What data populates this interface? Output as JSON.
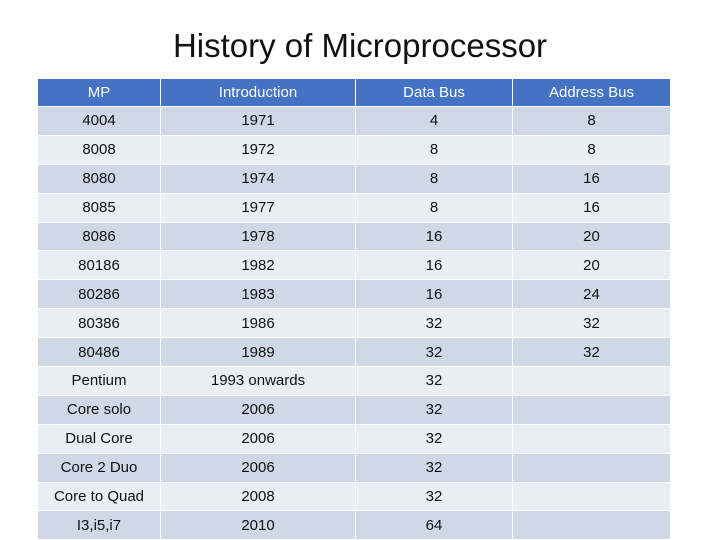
{
  "header": {
    "title": "History of Microprocessor"
  },
  "table": {
    "columns": [
      "MP",
      "Introduction",
      "Data Bus",
      "Address Bus"
    ],
    "rows": [
      [
        "4004",
        "1971",
        "4",
        "8"
      ],
      [
        "8008",
        "1972",
        "8",
        "8"
      ],
      [
        "8080",
        "1974",
        "8",
        "16"
      ],
      [
        "8085",
        "1977",
        "8",
        "16"
      ],
      [
        "8086",
        "1978",
        "16",
        "20"
      ],
      [
        "80186",
        "1982",
        "16",
        "20"
      ],
      [
        "80286",
        "1983",
        "16",
        "24"
      ],
      [
        "80386",
        "1986",
        "32",
        "32"
      ],
      [
        "80486",
        "1989",
        "32",
        "32"
      ],
      [
        "Pentium",
        "1993 onwards",
        "32"
      ],
      [
        "Core solo",
        "2006",
        "32"
      ],
      [
        "Dual Core",
        "2006",
        "32"
      ],
      [
        "Core 2 Duo",
        "2006",
        "32"
      ],
      [
        "Core to Quad",
        "2008",
        "32"
      ],
      [
        "I3,i5,i7",
        "2010",
        "64"
      ]
    ]
  }
}
